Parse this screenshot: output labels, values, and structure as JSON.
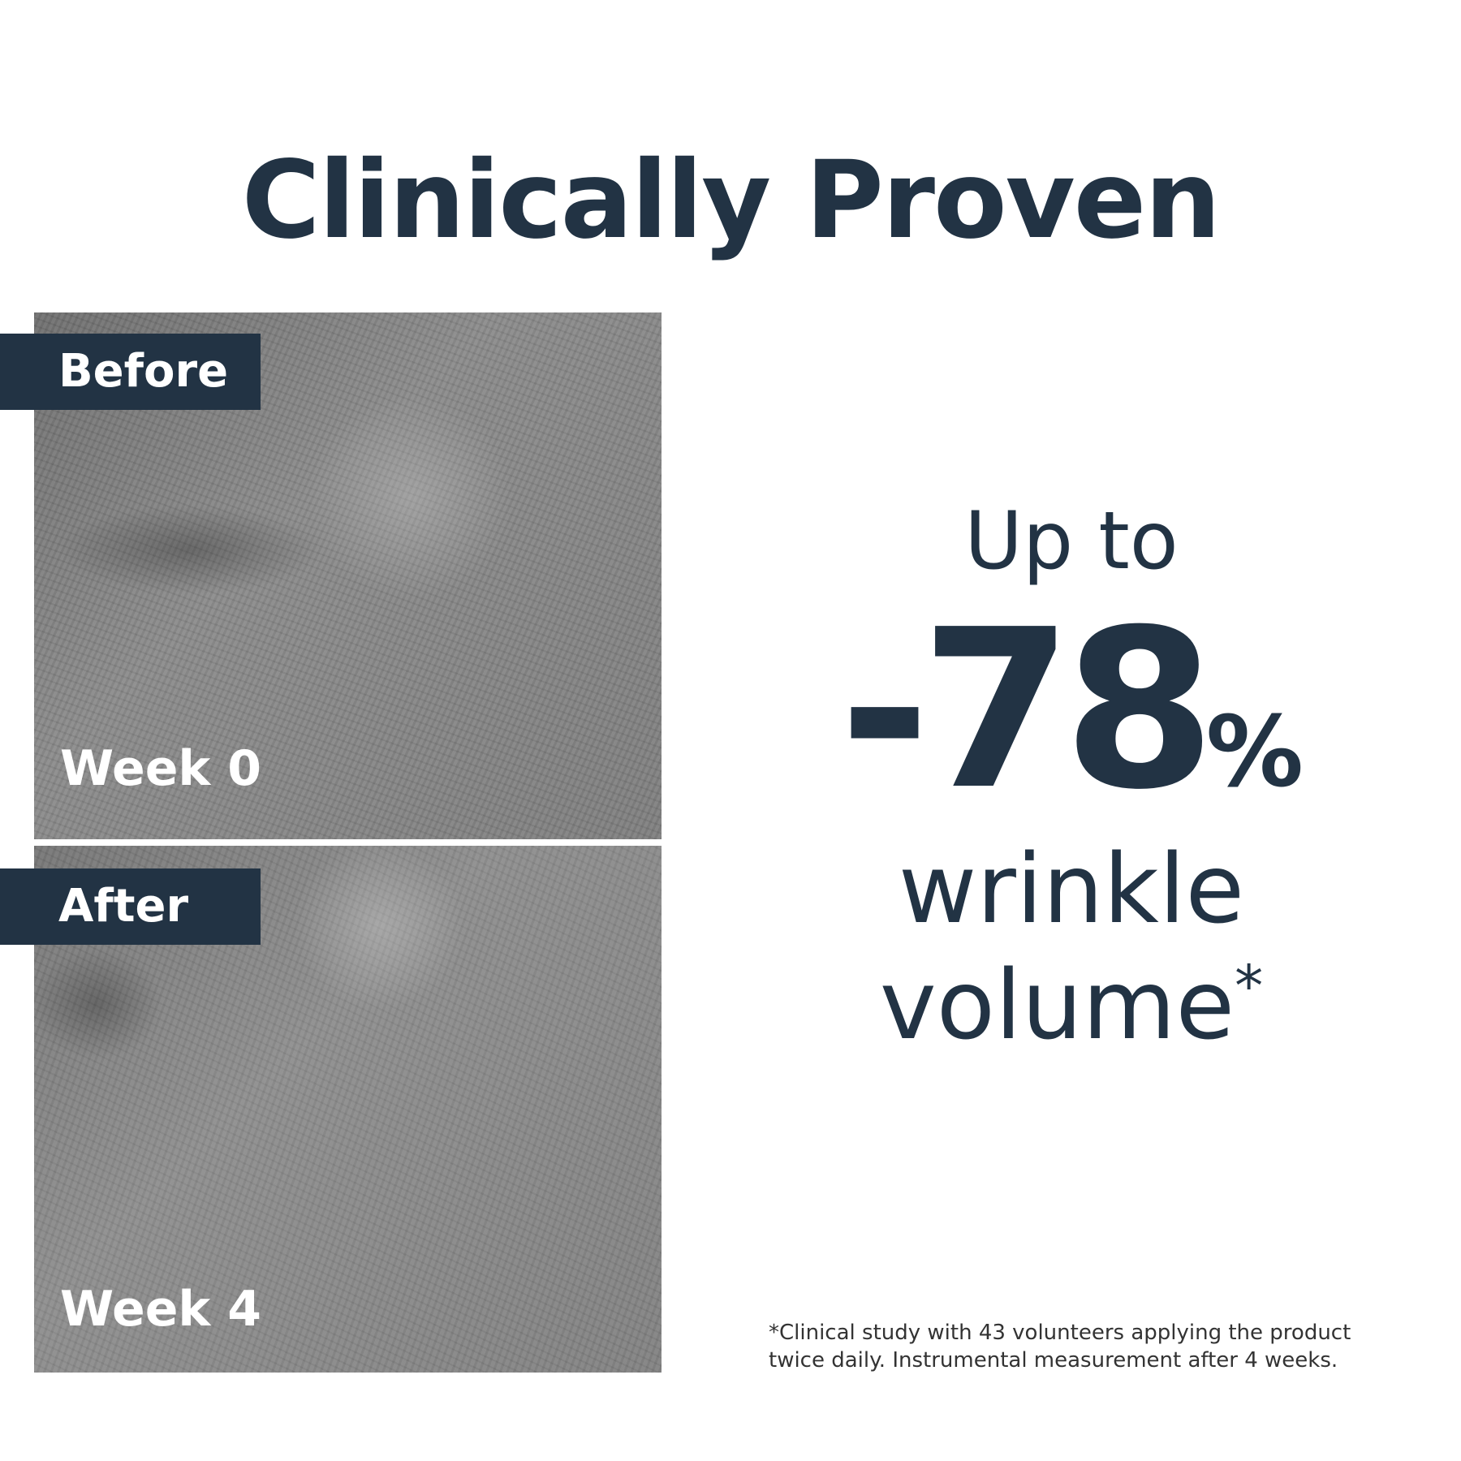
{
  "title": "Clinically Proven",
  "before": {
    "label": "Before",
    "week": "Week 0"
  },
  "after": {
    "label": "After",
    "week": "Week 4"
  },
  "claim": {
    "prefix": "Up to",
    "value": "-78",
    "unit": "%",
    "line1": "wrinkle",
    "line2": "volume",
    "asterisk": "*"
  },
  "footnote": {
    "line1": "*Clinical study with 43 volunteers applying the product",
    "line2": "twice daily. Instrumental measurement after 4 weeks."
  },
  "colors": {
    "brand": "#223344",
    "background": "#ffffff"
  }
}
